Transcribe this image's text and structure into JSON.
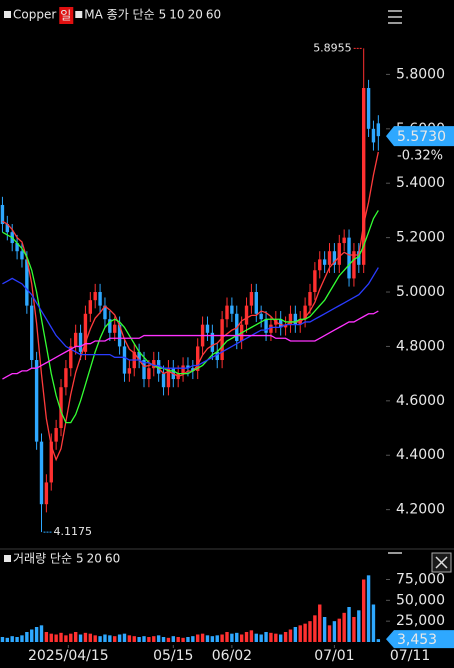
{
  "chart_data": [
    {
      "type": "candlestick",
      "title": "Copper",
      "period": "일",
      "ma_label": "MA 종가 단순",
      "up_color": "#ff3030",
      "down_color": "#2ea8ff",
      "xlim": [
        -0.5,
        92.5
      ],
      "xticks": [
        {
          "value": 13.5,
          "label": "2025/04/15"
        },
        {
          "value": 35,
          "label": "05/15"
        },
        {
          "value": 47,
          "label": "06/02"
        },
        {
          "value": 68,
          "label": "07/01"
        },
        {
          "value": 83.5,
          "label": "07/11"
        }
      ],
      "ylim": [
        4.07,
        6.0
      ],
      "yticks": [
        {
          "value": 5.8,
          "label": "5.8000"
        },
        {
          "value": 5.6,
          "label": "5.6000"
        },
        {
          "value": 5.4,
          "label": "5.4000"
        },
        {
          "value": 5.2,
          "label": "5.2000"
        },
        {
          "value": 5.0,
          "label": "5.0000"
        },
        {
          "value": 4.8,
          "label": "4.8000"
        },
        {
          "value": 4.6,
          "label": "4.6000"
        },
        {
          "value": 4.4,
          "label": "4.4000"
        },
        {
          "value": 4.2,
          "label": "4.2000"
        }
      ],
      "open": [
        5.32,
        5.25,
        5.22,
        5.18,
        5.15,
        5.12,
        4.95,
        4.75,
        4.45,
        4.22,
        4.3,
        4.45,
        4.5,
        4.65,
        4.72,
        4.8,
        4.85,
        4.78,
        4.92,
        4.97,
        5.0,
        4.95,
        4.9,
        4.85,
        4.88,
        4.8,
        4.7,
        4.72,
        4.78,
        4.75,
        4.68,
        4.72,
        4.75,
        4.7,
        4.65,
        4.72,
        4.68,
        4.7,
        4.73,
        4.72,
        4.71,
        4.8,
        4.88,
        4.85,
        4.78,
        4.75,
        4.9,
        4.95,
        4.92,
        4.82,
        4.88,
        4.95,
        5.0,
        4.92,
        4.9,
        4.85,
        4.88,
        4.9,
        4.87,
        4.88,
        4.92,
        4.88,
        4.9,
        4.95,
        5.0,
        5.08,
        5.12,
        5.1,
        5.15,
        5.1,
        5.18,
        5.2,
        5.05,
        5.15,
        5.1,
        5.75,
        5.6,
        5.62
      ],
      "high": [
        5.35,
        5.28,
        5.25,
        5.21,
        5.18,
        5.15,
        4.98,
        4.78,
        4.48,
        4.33,
        4.48,
        4.53,
        4.68,
        4.75,
        4.83,
        4.88,
        4.88,
        4.95,
        5.0,
        5.03,
        5.03,
        4.98,
        4.93,
        4.91,
        4.91,
        4.83,
        4.75,
        4.81,
        4.81,
        4.78,
        4.75,
        4.78,
        4.78,
        4.73,
        4.75,
        4.75,
        4.73,
        4.76,
        4.76,
        4.75,
        4.83,
        4.91,
        4.91,
        4.88,
        4.81,
        4.93,
        4.98,
        4.98,
        4.95,
        4.91,
        4.98,
        5.03,
        5.03,
        4.95,
        4.93,
        4.91,
        4.93,
        4.93,
        4.91,
        4.95,
        4.95,
        4.93,
        4.98,
        5.03,
        5.11,
        5.15,
        5.15,
        5.18,
        5.18,
        5.21,
        5.23,
        5.23,
        5.18,
        5.18,
        5.8955,
        5.78,
        5.63,
        5.65
      ],
      "low": [
        5.22,
        5.19,
        5.15,
        5.12,
        5.09,
        4.92,
        4.72,
        4.42,
        4.1175,
        4.19,
        4.27,
        4.42,
        4.47,
        4.62,
        4.69,
        4.77,
        4.75,
        4.75,
        4.89,
        4.94,
        4.92,
        4.87,
        4.82,
        4.82,
        4.77,
        4.67,
        4.67,
        4.69,
        4.72,
        4.65,
        4.65,
        4.69,
        4.67,
        4.62,
        4.62,
        4.65,
        4.65,
        4.67,
        4.69,
        4.68,
        4.68,
        4.77,
        4.82,
        4.75,
        4.72,
        4.72,
        4.87,
        4.89,
        4.79,
        4.79,
        4.85,
        4.92,
        4.89,
        4.87,
        4.82,
        4.82,
        4.85,
        4.84,
        4.84,
        4.85,
        4.85,
        4.85,
        4.87,
        4.92,
        4.97,
        5.05,
        5.07,
        5.07,
        5.07,
        5.07,
        5.15,
        5.02,
        5.02,
        5.07,
        5.07,
        5.57,
        5.52,
        5.52
      ],
      "close": [
        5.25,
        5.22,
        5.18,
        5.15,
        5.12,
        4.95,
        4.75,
        4.45,
        4.22,
        4.3,
        4.45,
        4.5,
        4.65,
        4.72,
        4.8,
        4.85,
        4.78,
        4.92,
        4.97,
        5.0,
        4.95,
        4.9,
        4.85,
        4.88,
        4.8,
        4.7,
        4.72,
        4.78,
        4.75,
        4.68,
        4.72,
        4.75,
        4.7,
        4.65,
        4.72,
        4.68,
        4.7,
        4.73,
        4.72,
        4.71,
        4.8,
        4.88,
        4.85,
        4.78,
        4.75,
        4.9,
        4.95,
        4.92,
        4.82,
        4.88,
        4.95,
        5.0,
        4.92,
        4.9,
        4.85,
        4.88,
        4.9,
        4.87,
        4.88,
        4.92,
        4.88,
        4.9,
        4.95,
        5.0,
        5.08,
        5.12,
        5.1,
        5.15,
        5.1,
        5.18,
        5.2,
        5.05,
        5.15,
        5.1,
        5.75,
        5.6,
        5.55,
        5.573
      ],
      "series": [
        {
          "name": "5",
          "color": "#ff3b3b",
          "values": [
            5.26,
            5.25,
            5.23,
            5.2,
            5.184,
            5.124,
            5.03,
            4.884,
            4.698,
            4.534,
            4.434,
            4.384,
            4.424,
            4.524,
            4.624,
            4.704,
            4.76,
            4.814,
            4.864,
            4.904,
            4.924,
            4.948,
            4.934,
            4.916,
            4.876,
            4.826,
            4.79,
            4.776,
            4.75,
            4.726,
            4.73,
            4.736,
            4.72,
            4.7,
            4.708,
            4.7,
            4.69,
            4.696,
            4.71,
            4.708,
            4.732,
            4.768,
            4.792,
            4.804,
            4.812,
            4.832,
            4.846,
            4.86,
            4.868,
            4.894,
            4.904,
            4.914,
            4.914,
            4.93,
            4.924,
            4.91,
            4.89,
            4.88,
            4.876,
            4.89,
            4.89,
            4.89,
            4.906,
            4.93,
            4.962,
            5.01,
            5.05,
            5.09,
            5.11,
            5.13,
            5.146,
            5.136,
            5.136,
            5.136,
            5.25,
            5.33,
            5.43,
            5.515
          ]
        },
        {
          "name": "10",
          "color": "#33ff33",
          "values": [
            5.22,
            5.21,
            5.2,
            5.18,
            5.16,
            5.13,
            5.08,
            5.0,
            4.9,
            4.8,
            4.7,
            4.62,
            4.56,
            4.52,
            4.52,
            4.55,
            4.6,
            4.66,
            4.72,
            4.78,
            4.83,
            4.87,
            4.89,
            4.9,
            4.89,
            4.87,
            4.84,
            4.81,
            4.78,
            4.76,
            4.74,
            4.73,
            4.72,
            4.72,
            4.71,
            4.71,
            4.7,
            4.7,
            4.7,
            4.71,
            4.72,
            4.73,
            4.75,
            4.77,
            4.78,
            4.8,
            4.82,
            4.83,
            4.84,
            4.85,
            4.86,
            4.87,
            4.88,
            4.89,
            4.9,
            4.9,
            4.9,
            4.9,
            4.89,
            4.89,
            4.89,
            4.9,
            4.9,
            4.91,
            4.93,
            4.95,
            4.97,
            5.0,
            5.03,
            5.06,
            5.08,
            5.1,
            5.12,
            5.13,
            5.17,
            5.22,
            5.27,
            5.3
          ]
        },
        {
          "name": "20",
          "color": "#2a3cff",
          "values": [
            5.03,
            5.04,
            5.05,
            5.04,
            5.03,
            5.01,
            4.99,
            4.96,
            4.93,
            4.9,
            4.87,
            4.84,
            4.82,
            4.8,
            4.79,
            4.78,
            4.77,
            4.77,
            4.77,
            4.77,
            4.77,
            4.77,
            4.77,
            4.76,
            4.76,
            4.76,
            4.75,
            4.75,
            4.75,
            4.74,
            4.74,
            4.73,
            4.73,
            4.72,
            4.72,
            4.72,
            4.72,
            4.72,
            4.72,
            4.73,
            4.73,
            4.74,
            4.75,
            4.76,
            4.77,
            4.78,
            4.79,
            4.8,
            4.81,
            4.82,
            4.83,
            4.84,
            4.85,
            4.86,
            4.86,
            4.87,
            4.87,
            4.87,
            4.88,
            4.88,
            4.88,
            4.88,
            4.89,
            4.89,
            4.9,
            4.91,
            4.92,
            4.93,
            4.94,
            4.95,
            4.96,
            4.97,
            4.98,
            4.99,
            5.01,
            5.03,
            5.06,
            5.09
          ]
        },
        {
          "name": "60",
          "color": "#ff33ff",
          "values": [
            4.68,
            4.69,
            4.7,
            4.7,
            4.71,
            4.71,
            4.72,
            4.72,
            4.73,
            4.74,
            4.75,
            4.76,
            4.77,
            4.78,
            4.79,
            4.8,
            4.8,
            4.81,
            4.81,
            4.82,
            4.82,
            4.82,
            4.83,
            4.83,
            4.83,
            4.83,
            4.83,
            4.83,
            4.83,
            4.84,
            4.84,
            4.84,
            4.84,
            4.84,
            4.84,
            4.84,
            4.84,
            4.84,
            4.84,
            4.84,
            4.84,
            4.84,
            4.84,
            4.84,
            4.84,
            4.84,
            4.84,
            4.84,
            4.84,
            4.84,
            4.84,
            4.84,
            4.84,
            4.84,
            4.84,
            4.84,
            4.83,
            4.83,
            4.83,
            4.82,
            4.82,
            4.82,
            4.82,
            4.82,
            4.82,
            4.83,
            4.84,
            4.85,
            4.86,
            4.87,
            4.88,
            4.89,
            4.89,
            4.9,
            4.91,
            4.92,
            4.92,
            4.93
          ]
        }
      ],
      "last": {
        "value": 5.573,
        "label": "5.5730"
      },
      "change": "-0.32%",
      "high_mark": {
        "index": 74,
        "value": 5.8955,
        "label": "5.8955"
      },
      "low_mark": {
        "index": 8,
        "value": 4.1175,
        "label": "4.1175"
      }
    },
    {
      "type": "bar",
      "title": "거래량 단순",
      "ma_periods": [
        {
          "name": "5",
          "color": "#ffd700"
        },
        {
          "name": "20",
          "color": "#33ddff"
        },
        {
          "name": "60",
          "color": "#cc44ff"
        }
      ],
      "ylim": [
        0,
        90000
      ],
      "yticks": [
        {
          "value": 75000,
          "label": "75,000"
        },
        {
          "value": 50000,
          "label": "50,000"
        },
        {
          "value": 25000,
          "label": "25,000"
        }
      ],
      "values": [
        6000,
        5000,
        7000,
        6000,
        8000,
        12000,
        15000,
        18000,
        20000,
        12000,
        10000,
        9000,
        11000,
        8000,
        10000,
        12000,
        9000,
        11000,
        10000,
        8000,
        7000,
        9000,
        8000,
        7000,
        9000,
        10000,
        8000,
        7000,
        6000,
        7000,
        6000,
        7000,
        8000,
        6000,
        5000,
        7000,
        6000,
        5000,
        6000,
        7000,
        9000,
        10000,
        8000,
        7000,
        8000,
        9000,
        12000,
        10000,
        11000,
        9000,
        12000,
        14000,
        10000,
        9000,
        12000,
        11000,
        10000,
        9000,
        12000,
        15000,
        18000,
        20000,
        22000,
        25000,
        32000,
        45000,
        30000,
        20000,
        25000,
        28000,
        35000,
        42000,
        30000,
        38000,
        75000,
        80000,
        45000,
        3453
      ],
      "last": {
        "value": 3453,
        "label": "3,453"
      }
    }
  ]
}
